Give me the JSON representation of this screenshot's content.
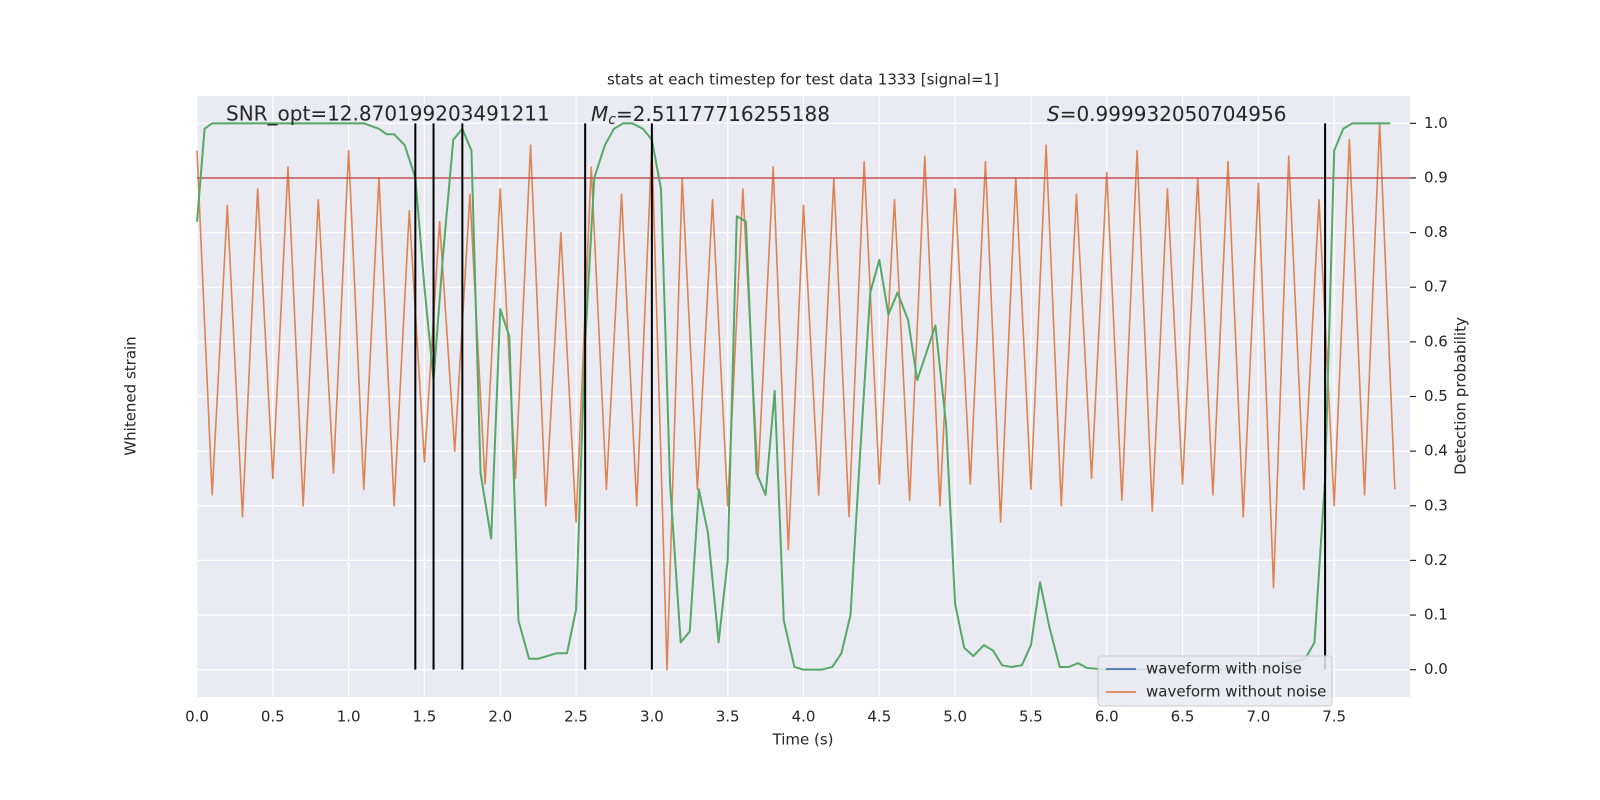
{
  "chart_data": {
    "type": "line",
    "title": "stats at each timestep for test data 1333 [signal=1]",
    "xlabel": "Time (s)",
    "ylabel": "Whitened strain",
    "y2label": "Detection probability",
    "annotations": {
      "snr": "SNR_opt=12.870199203491211",
      "mc_symbol": "M",
      "mc_sub": "c",
      "mc_value": "=2.51177716255188",
      "s_symbol": "S",
      "s_value": "=0.999932050704956"
    },
    "xlim": [
      0,
      8
    ],
    "xticks": [
      {
        "value": 0,
        "label": "0.0"
      },
      0.5,
      {
        "value": 1,
        "label": "1.0"
      },
      1.5,
      {
        "value": 2,
        "label": "2.0"
      },
      2.5,
      {
        "value": 3,
        "label": "3.0"
      },
      3.5,
      {
        "value": 4,
        "label": "4.0"
      },
      4.5,
      {
        "value": 5,
        "label": "5.0"
      },
      5.5,
      {
        "value": 6,
        "label": "6.0"
      },
      6.5,
      {
        "value": 7,
        "label": "7.0"
      },
      7.5
    ],
    "y2lim": [
      -0.05,
      1.05
    ],
    "y2ticks": [
      {
        "value": 0,
        "label": "0.0"
      },
      0.1,
      0.2,
      0.3,
      0.4,
      0.5,
      0.6,
      0.7,
      0.8,
      0.9,
      {
        "value": 1,
        "label": "1.0"
      }
    ],
    "grid": true,
    "legend_position": "lower right",
    "legend": [
      {
        "name": "waveform with noise",
        "color": "#4c72b0"
      },
      {
        "name": "waveform without noise",
        "color": "#dd8452"
      }
    ],
    "strain": {
      "color": "#dd8452",
      "axis": "y2",
      "x": [
        0.0,
        0.1,
        0.2,
        0.3,
        0.4,
        0.5,
        0.6,
        0.7,
        0.8,
        0.9,
        1.0,
        1.1,
        1.2,
        1.3,
        1.4,
        1.5,
        1.6,
        1.7,
        1.8,
        1.9,
        2.0,
        2.1,
        2.2,
        2.3,
        2.4,
        2.5,
        2.6,
        2.7,
        2.8,
        2.9,
        3.0,
        3.1,
        3.2,
        3.3,
        3.4,
        3.5,
        3.6,
        3.7,
        3.8,
        3.9,
        4.0,
        4.1,
        4.2,
        4.3,
        4.4,
        4.5,
        4.6,
        4.7,
        4.8,
        4.9,
        5.0,
        5.1,
        5.2,
        5.3,
        5.4,
        5.5,
        5.6,
        5.7,
        5.8,
        5.9,
        6.0,
        6.1,
        6.2,
        6.3,
        6.4,
        6.5,
        6.6,
        6.7,
        6.8,
        6.9,
        7.0,
        7.1,
        7.2,
        7.3,
        7.4,
        7.5,
        7.6,
        7.7,
        7.8,
        7.9
      ],
      "values": [
        0.95,
        0.32,
        0.85,
        0.28,
        0.88,
        0.35,
        0.92,
        0.3,
        0.86,
        0.36,
        0.95,
        0.33,
        0.9,
        0.3,
        0.84,
        0.38,
        0.82,
        0.4,
        0.87,
        0.34,
        0.88,
        0.35,
        0.96,
        0.3,
        0.8,
        0.27,
        0.92,
        0.33,
        0.87,
        0.3,
        0.96,
        0.0,
        0.9,
        0.33,
        0.86,
        0.3,
        0.88,
        0.35,
        0.92,
        0.22,
        0.85,
        0.32,
        0.9,
        0.28,
        0.93,
        0.34,
        0.86,
        0.31,
        0.94,
        0.3,
        0.88,
        0.34,
        0.93,
        0.27,
        0.9,
        0.33,
        0.96,
        0.3,
        0.87,
        0.35,
        0.91,
        0.31,
        0.95,
        0.29,
        0.88,
        0.34,
        0.9,
        0.32,
        0.93,
        0.28,
        0.89,
        0.15,
        0.94,
        0.33,
        0.86,
        0.3,
        0.97,
        0.32,
        1.0,
        0.33
      ]
    },
    "probability": {
      "color": "#55a868",
      "axis": "y2",
      "x": [
        0.0,
        0.05,
        0.1,
        0.5,
        1.0,
        1.1,
        1.2,
        1.25,
        1.3,
        1.37,
        1.44,
        1.5,
        1.56,
        1.62,
        1.69,
        1.75,
        1.81,
        1.87,
        1.94,
        2.0,
        2.06,
        2.12,
        2.19,
        2.25,
        2.31,
        2.37,
        2.44,
        2.5,
        2.56,
        2.62,
        2.69,
        2.75,
        2.81,
        2.87,
        2.94,
        3.0,
        3.06,
        3.12,
        3.19,
        3.25,
        3.31,
        3.37,
        3.44,
        3.5,
        3.56,
        3.62,
        3.69,
        3.75,
        3.81,
        3.87,
        3.94,
        4.0,
        4.06,
        4.12,
        4.19,
        4.25,
        4.31,
        4.37,
        4.44,
        4.5,
        4.56,
        4.62,
        4.69,
        4.75,
        4.81,
        4.87,
        4.94,
        5.0,
        5.06,
        5.12,
        5.19,
        5.25,
        5.31,
        5.37,
        5.44,
        5.5,
        5.56,
        5.62,
        5.69,
        5.75,
        5.81,
        5.87,
        6.0,
        6.5,
        7.0,
        7.31,
        7.37,
        7.44,
        7.5,
        7.56,
        7.62,
        7.69,
        7.87
      ],
      "values": [
        0.82,
        0.99,
        1.0,
        1.0,
        1.0,
        1.0,
        0.99,
        0.98,
        0.98,
        0.96,
        0.9,
        0.7,
        0.53,
        0.75,
        0.97,
        0.99,
        0.95,
        0.36,
        0.24,
        0.66,
        0.61,
        0.09,
        0.02,
        0.02,
        0.025,
        0.03,
        0.03,
        0.11,
        0.6,
        0.9,
        0.96,
        0.99,
        1.0,
        1.0,
        0.99,
        0.97,
        0.88,
        0.34,
        0.05,
        0.07,
        0.33,
        0.25,
        0.05,
        0.2,
        0.83,
        0.82,
        0.36,
        0.32,
        0.51,
        0.09,
        0.005,
        0.0,
        0.0,
        0.0,
        0.005,
        0.03,
        0.1,
        0.38,
        0.69,
        0.75,
        0.65,
        0.69,
        0.64,
        0.53,
        0.58,
        0.63,
        0.45,
        0.12,
        0.04,
        0.025,
        0.045,
        0.035,
        0.008,
        0.005,
        0.008,
        0.045,
        0.16,
        0.08,
        0.005,
        0.005,
        0.012,
        0.003,
        0.0,
        0.0,
        0.0,
        0.02,
        0.05,
        0.35,
        0.95,
        0.99,
        1.0,
        1.0,
        1.0
      ]
    },
    "threshold": {
      "value": 0.9,
      "color": "#c44e52"
    },
    "vlines": {
      "x": [
        1.44,
        1.56,
        1.75,
        2.56,
        3.0,
        7.44
      ],
      "span": [
        0,
        1
      ],
      "color": "#000000"
    }
  }
}
